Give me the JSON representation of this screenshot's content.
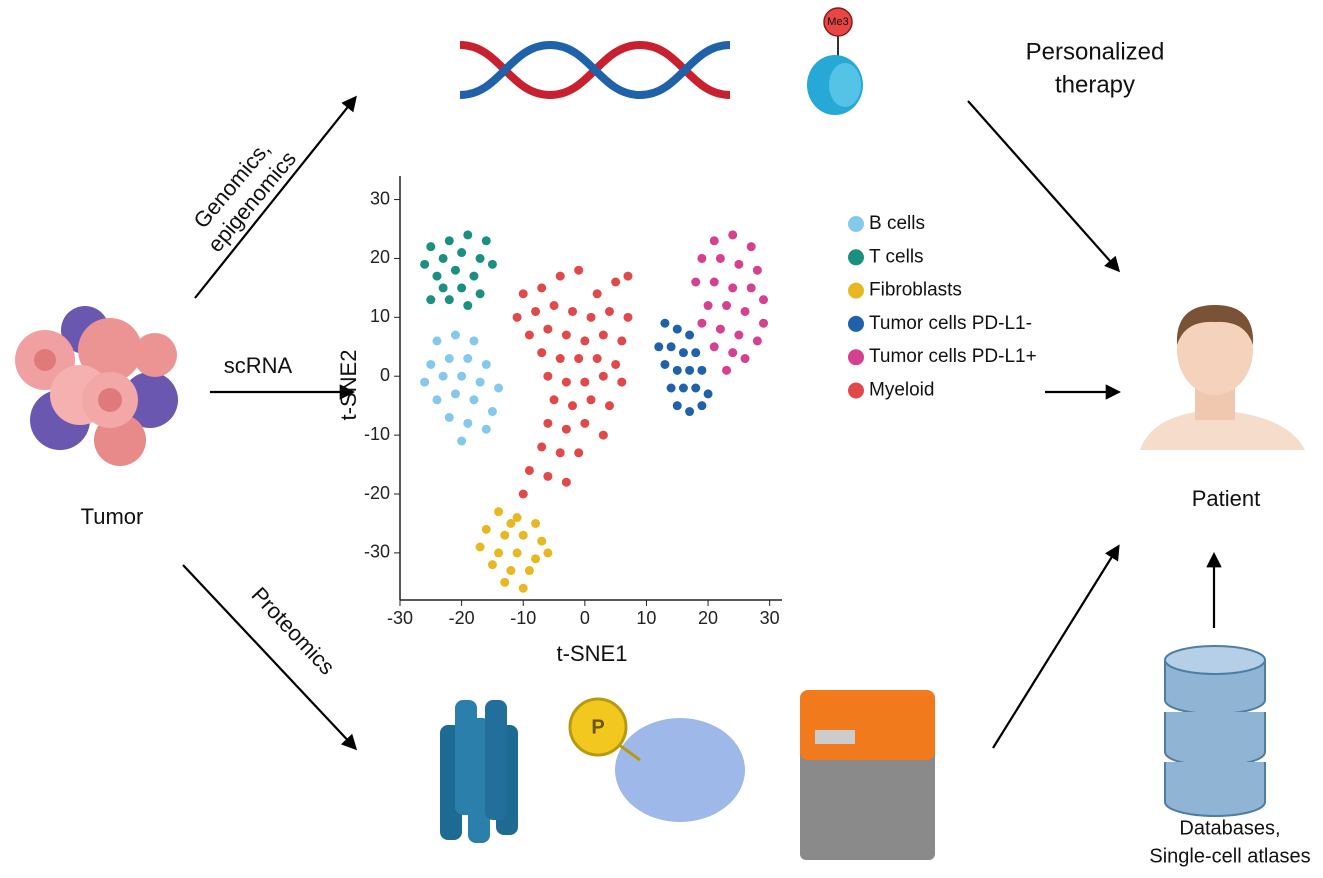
{
  "labels": {
    "genomics": [
      "Genomics,",
      "epigenomics"
    ],
    "scrna": "scRNA",
    "proteomics": "Proteomics",
    "tumor": "Tumor",
    "therapy": [
      "Personalized",
      "therapy"
    ],
    "patient": "Patient",
    "databases": [
      "Databases,",
      "Single-cell atlases"
    ],
    "me3": "Me3",
    "phospho": "P"
  },
  "chart_data": {
    "type": "scatter",
    "xlabel": "t-SNE1",
    "ylabel": "t-SNE2",
    "xlim": [
      -30,
      32
    ],
    "ylim": [
      -38,
      34
    ],
    "xticks": [
      -30,
      -20,
      -10,
      0,
      10,
      20,
      30
    ],
    "yticks": [
      -30,
      -20,
      -10,
      0,
      10,
      20,
      30
    ],
    "series": [
      {
        "name": "B cells",
        "color": "#84c9ec",
        "x": [
          -24,
          -21,
          -18,
          -25,
          -22,
          -19,
          -16,
          -26,
          -23,
          -20,
          -17,
          -14,
          -24,
          -21,
          -18,
          -15,
          -22,
          -19,
          -16,
          -20
        ],
        "y": [
          6,
          7,
          6,
          2,
          3,
          3,
          2,
          -1,
          0,
          0,
          -1,
          -2,
          -4,
          -3,
          -4,
          -6,
          -7,
          -8,
          -9,
          -11
        ]
      },
      {
        "name": "T cells",
        "color": "#1b8f80",
        "x": [
          -25,
          -22,
          -19,
          -16,
          -26,
          -23,
          -20,
          -17,
          -24,
          -21,
          -18,
          -15,
          -23,
          -20,
          -17,
          -22,
          -19,
          -25
        ],
        "y": [
          22,
          23,
          24,
          23,
          19,
          20,
          21,
          20,
          17,
          18,
          17,
          19,
          15,
          15,
          14,
          13,
          12,
          13
        ]
      },
      {
        "name": "Fibroblasts",
        "color": "#e7b822",
        "x": [
          -14,
          -11,
          -8,
          -16,
          -13,
          -10,
          -7,
          -17,
          -14,
          -11,
          -8,
          -15,
          -12,
          -9,
          -13,
          -10,
          -6,
          -12
        ],
        "y": [
          -23,
          -24,
          -25,
          -26,
          -27,
          -27,
          -28,
          -29,
          -30,
          -30,
          -31,
          -32,
          -33,
          -33,
          -35,
          -36,
          -30,
          -25
        ]
      },
      {
        "name": "Tumor cells PD-L1-",
        "color": "#1f62aa",
        "x": [
          13,
          15,
          17,
          12,
          14,
          16,
          18,
          13,
          15,
          17,
          19,
          14,
          16,
          18,
          20,
          15,
          17,
          19
        ],
        "y": [
          9,
          8,
          7,
          5,
          5,
          4,
          4,
          2,
          1,
          1,
          1,
          -2,
          -2,
          -2,
          -3,
          -5,
          -6,
          -5
        ]
      },
      {
        "name": "Tumor cells PD-L1+",
        "color": "#d5418f",
        "x": [
          21,
          24,
          27,
          19,
          22,
          25,
          28,
          18,
          21,
          24,
          27,
          29,
          20,
          23,
          26,
          29,
          19,
          22,
          25,
          28,
          21,
          24,
          26,
          23
        ],
        "y": [
          23,
          24,
          22,
          20,
          20,
          19,
          18,
          16,
          16,
          15,
          15,
          13,
          12,
          12,
          11,
          9,
          9,
          8,
          7,
          6,
          5,
          4,
          3,
          1
        ]
      },
      {
        "name": "Myeloid",
        "color": "#e0484a",
        "x": [
          -10,
          -7,
          -4,
          -1,
          2,
          5,
          7,
          -11,
          -8,
          -5,
          -2,
          1,
          4,
          7,
          -9,
          -6,
          -3,
          0,
          3,
          6,
          -7,
          -4,
          -1,
          2,
          5,
          -6,
          -3,
          0,
          3,
          6,
          -5,
          -2,
          1,
          4,
          -6,
          -3,
          0,
          3,
          -7,
          -4,
          -1,
          -9,
          -6,
          -3,
          -10
        ],
        "y": [
          14,
          15,
          17,
          18,
          14,
          16,
          17,
          10,
          11,
          12,
          11,
          10,
          11,
          10,
          7,
          8,
          7,
          6,
          7,
          6,
          4,
          3,
          3,
          3,
          2,
          0,
          -1,
          -1,
          0,
          -1,
          -4,
          -5,
          -4,
          -5,
          -8,
          -9,
          -8,
          -10,
          -12,
          -13,
          -13,
          -16,
          -17,
          -18,
          -20
        ]
      }
    ]
  }
}
